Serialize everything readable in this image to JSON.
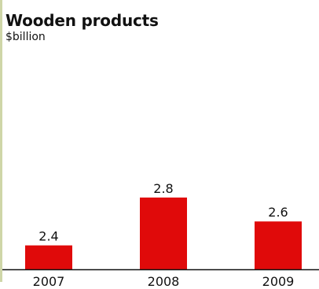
{
  "colors": {
    "bar": "#e00a0a",
    "rule": "#cfd6a8",
    "text": "#111111"
  },
  "chart_data": {
    "type": "bar",
    "title": "Wooden products",
    "subtitle": "$billion",
    "categories": [
      "2007",
      "2008",
      "2009"
    ],
    "values": [
      2.4,
      2.8,
      2.6
    ],
    "data_labels": [
      "2.4",
      "2.8",
      "2.6"
    ],
    "xlabel": "",
    "ylabel": "",
    "ylim": [
      2.2,
      2.97
    ],
    "grid": false,
    "legend": "none"
  }
}
